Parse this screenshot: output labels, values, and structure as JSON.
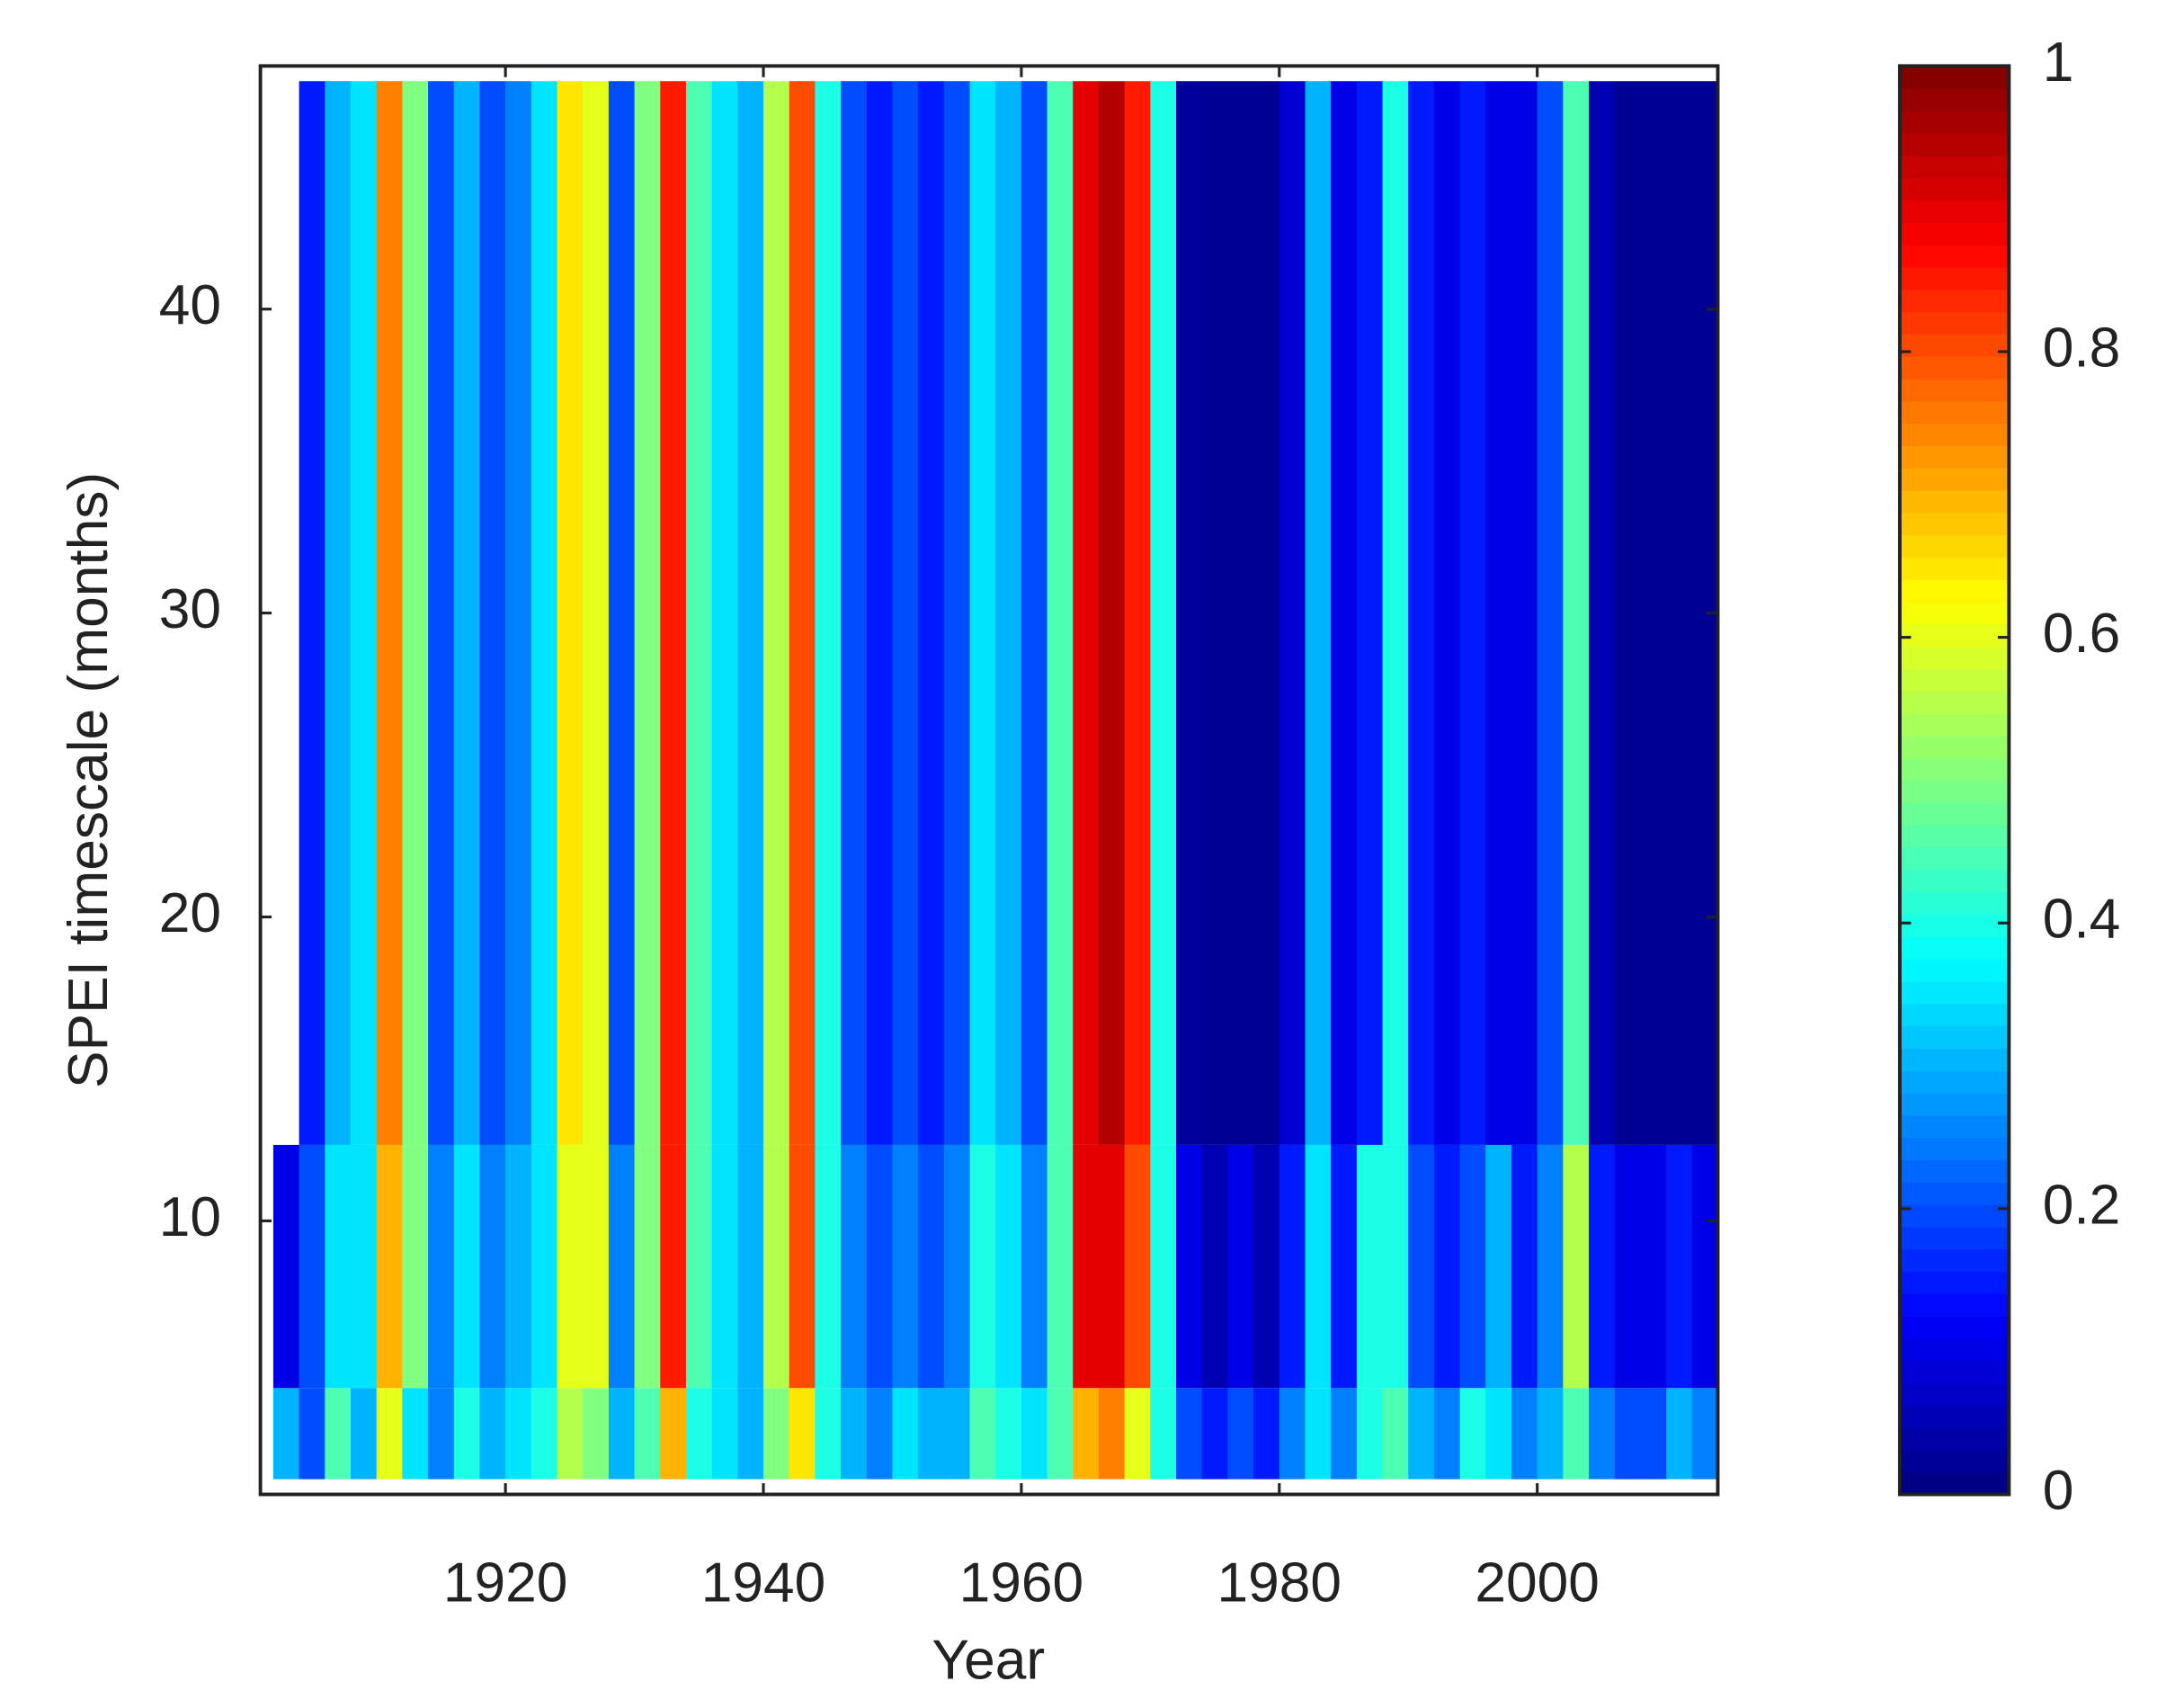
{
  "chart_data": {
    "type": "heatmap",
    "xlabel": "Year",
    "ylabel": "SPEI timescale (months)",
    "x_bins": [
      1902,
      1904,
      1906,
      1908,
      1910,
      1912,
      1914,
      1916,
      1918,
      1920,
      1922,
      1924,
      1926,
      1928,
      1930,
      1932,
      1934,
      1936,
      1938,
      1940,
      1942,
      1944,
      1946,
      1948,
      1950,
      1952,
      1954,
      1956,
      1958,
      1960,
      1962,
      1964,
      1966,
      1968,
      1970,
      1972,
      1974,
      1976,
      1978,
      1980,
      1982,
      1984,
      1986,
      1988,
      1990,
      1992,
      1994,
      1996,
      1998,
      2000,
      2002,
      2004,
      2006,
      2008,
      2010,
      2012,
      2014
    ],
    "y_bins": [
      1.5,
      4.5,
      12.5,
      47.5
    ],
    "z": [
      [
        0.3,
        0.2,
        0.45,
        0.3,
        0.6,
        0.35,
        0.25,
        0.4,
        0.3,
        0.35,
        0.4,
        0.55,
        0.5,
        0.3,
        0.45,
        0.7,
        0.4,
        0.35,
        0.3,
        0.5,
        0.65,
        0.4,
        0.3,
        0.25,
        0.35,
        0.3,
        0.3,
        0.45,
        0.4,
        0.35,
        0.45,
        0.7,
        0.75,
        0.6,
        0.4,
        0.2,
        0.15,
        0.2,
        0.15,
        0.25,
        0.35,
        0.25,
        0.4,
        0.45,
        0.3,
        0.25,
        0.4,
        0.35,
        0.25,
        0.3,
        0.45,
        0.25,
        0.2,
        0.2,
        0.3,
        0.25
      ],
      [
        0.1,
        0.2,
        0.35,
        0.35,
        0.7,
        0.5,
        0.25,
        0.35,
        0.25,
        0.3,
        0.35,
        0.6,
        0.6,
        0.25,
        0.5,
        0.85,
        0.45,
        0.35,
        0.3,
        0.55,
        0.8,
        0.4,
        0.25,
        0.2,
        0.25,
        0.2,
        0.25,
        0.4,
        0.35,
        0.25,
        0.45,
        0.9,
        0.9,
        0.8,
        0.4,
        0.1,
        0.05,
        0.1,
        0.05,
        0.15,
        0.35,
        0.15,
        0.4,
        0.4,
        0.2,
        0.15,
        0.2,
        0.3,
        0.15,
        0.25,
        0.55,
        0.15,
        0.1,
        0.1,
        0.15,
        0.1
      ],
      [
        null,
        0.15,
        0.3,
        0.35,
        0.75,
        0.5,
        0.2,
        0.3,
        0.2,
        0.25,
        0.35,
        0.65,
        0.6,
        0.2,
        0.5,
        0.85,
        0.45,
        0.35,
        0.3,
        0.55,
        0.8,
        0.4,
        0.2,
        0.15,
        0.2,
        0.15,
        0.2,
        0.35,
        0.3,
        0.2,
        0.45,
        0.9,
        0.95,
        0.85,
        0.4,
        0.03,
        0.02,
        0.02,
        0.02,
        0.08,
        0.3,
        0.1,
        0.15,
        0.4,
        0.15,
        0.1,
        0.15,
        0.1,
        0.1,
        0.2,
        0.45,
        0.05,
        0.02,
        0.02,
        0.02,
        0.02
      ]
    ],
    "colormap": "jet",
    "xlim": [
      1901,
      2014
    ],
    "xticks": [
      1920,
      1940,
      1960,
      1980,
      2000
    ],
    "ylim": [
      1,
      48
    ],
    "yticks": [
      10,
      20,
      30,
      40
    ],
    "clim": [
      0,
      1
    ],
    "cticks": [
      0,
      0.2,
      0.4,
      0.6,
      0.8,
      1
    ]
  }
}
